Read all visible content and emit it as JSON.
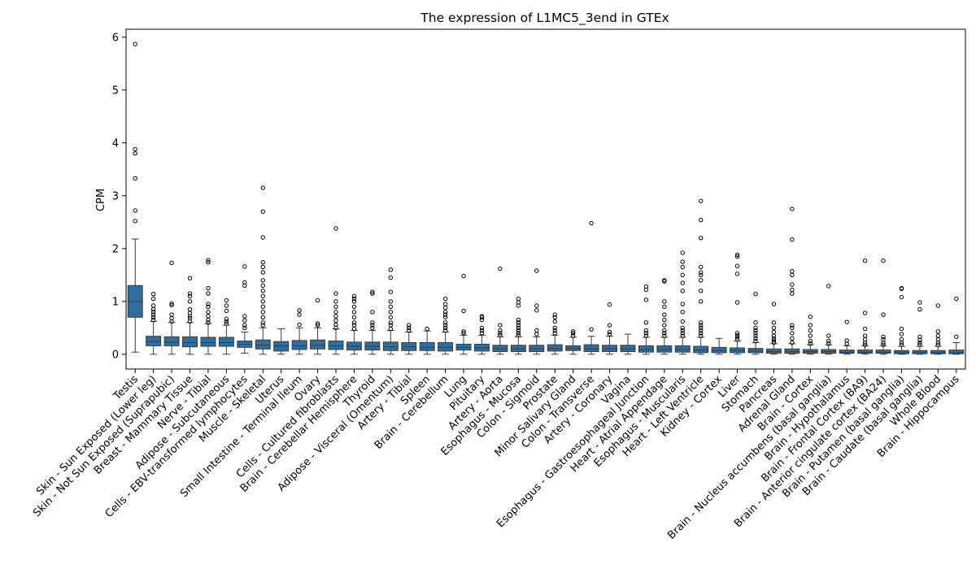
{
  "chart_data": {
    "type": "box",
    "title": "The expression of L1MC5_3end in GTEx",
    "xlabel": "",
    "ylabel": "CPM",
    "ylim": [
      -0.28,
      6.15
    ],
    "yticks": [
      0,
      1,
      2,
      3,
      4,
      5,
      6
    ],
    "grid": false,
    "box_color": "#2f6f9f",
    "categories": [
      {
        "name": "Testis",
        "q1": 0.7,
        "median": 1.0,
        "q3": 1.3,
        "lo": 0.04,
        "hi": 2.18,
        "outliers": [
          2.52,
          2.72,
          3.33,
          3.8,
          3.88,
          5.87
        ]
      },
      {
        "name": "Skin - Sun Exposed (Lower leg)",
        "q1": 0.16,
        "median": 0.24,
        "q3": 0.34,
        "lo": 0.0,
        "hi": 0.62,
        "outliers": [
          0.65,
          0.7,
          0.75,
          0.8,
          0.85,
          0.92,
          1.05,
          1.14
        ]
      },
      {
        "name": "Skin - Not Sun Exposed (Suprapubic)",
        "q1": 0.16,
        "median": 0.23,
        "q3": 0.33,
        "lo": 0.0,
        "hi": 0.6,
        "outliers": [
          0.62,
          0.68,
          0.75,
          0.93,
          0.96,
          1.73
        ]
      },
      {
        "name": "Breast - Mammary Tissue",
        "q1": 0.14,
        "median": 0.22,
        "q3": 0.33,
        "lo": 0.0,
        "hi": 0.6,
        "outliers": [
          0.62,
          0.68,
          0.72,
          0.78,
          0.85,
          1.0,
          1.1,
          1.15,
          1.44
        ]
      },
      {
        "name": "Nerve - Tibial",
        "q1": 0.15,
        "median": 0.22,
        "q3": 0.32,
        "lo": 0.0,
        "hi": 0.58,
        "outliers": [
          0.6,
          0.65,
          0.72,
          0.8,
          0.9,
          0.95,
          1.15,
          1.25,
          1.74,
          1.78
        ]
      },
      {
        "name": "Adipose - Subcutaneous",
        "q1": 0.15,
        "median": 0.22,
        "q3": 0.32,
        "lo": 0.0,
        "hi": 0.55,
        "outliers": [
          0.58,
          0.62,
          0.67,
          0.82,
          0.92,
          1.02
        ]
      },
      {
        "name": "Cells - EBV-transformed lymphocytes",
        "q1": 0.13,
        "median": 0.19,
        "q3": 0.25,
        "lo": 0.02,
        "hi": 0.42,
        "outliers": [
          0.5,
          0.55,
          0.64,
          0.72,
          1.3,
          1.36,
          1.66
        ]
      },
      {
        "name": "Muscle - Skeletal",
        "q1": 0.1,
        "median": 0.17,
        "q3": 0.27,
        "lo": 0.0,
        "hi": 0.5,
        "outliers": [
          0.55,
          0.6,
          0.7,
          0.8,
          0.9,
          1.0,
          1.1,
          1.2,
          1.3,
          1.4,
          1.55,
          1.65,
          1.74,
          2.21,
          2.7,
          3.15
        ]
      },
      {
        "name": "Uterus",
        "q1": 0.06,
        "median": 0.16,
        "q3": 0.24,
        "lo": 0.0,
        "hi": 0.48,
        "outliers": []
      },
      {
        "name": "Small Intestine - Terminal Ileum",
        "q1": 0.09,
        "median": 0.16,
        "q3": 0.26,
        "lo": 0.0,
        "hi": 0.5,
        "outliers": [
          0.56,
          0.75,
          0.83
        ]
      },
      {
        "name": "Ovary",
        "q1": 0.1,
        "median": 0.17,
        "q3": 0.27,
        "lo": 0.0,
        "hi": 0.5,
        "outliers": [
          0.55,
          0.58,
          1.02
        ]
      },
      {
        "name": "Cells - Cultured fibroblasts",
        "q1": 0.09,
        "median": 0.16,
        "q3": 0.25,
        "lo": 0.0,
        "hi": 0.48,
        "outliers": [
          0.5,
          0.56,
          0.64,
          0.72,
          0.8,
          0.9,
          1.0,
          1.15,
          2.38
        ]
      },
      {
        "name": "Brain - Cerebellar Hemisphere",
        "q1": 0.08,
        "median": 0.15,
        "q3": 0.23,
        "lo": 0.0,
        "hi": 0.45,
        "outliers": [
          0.48,
          0.55,
          0.6,
          0.7,
          0.8,
          0.9,
          1.0,
          1.05,
          1.1
        ]
      },
      {
        "name": "Thyroid",
        "q1": 0.08,
        "median": 0.15,
        "q3": 0.23,
        "lo": 0.0,
        "hi": 0.45,
        "outliers": [
          0.5,
          0.55,
          0.6,
          0.8,
          1.15,
          1.18
        ]
      },
      {
        "name": "Adipose - Visceral (Omentum)",
        "q1": 0.07,
        "median": 0.14,
        "q3": 0.23,
        "lo": 0.0,
        "hi": 0.45,
        "outliers": [
          0.48,
          0.55,
          0.6,
          0.7,
          0.8,
          0.9,
          1.0,
          1.18,
          1.45,
          1.6
        ]
      },
      {
        "name": "Artery - Tibial",
        "q1": 0.07,
        "median": 0.14,
        "q3": 0.22,
        "lo": 0.0,
        "hi": 0.42,
        "outliers": [
          0.45,
          0.5,
          0.55
        ]
      },
      {
        "name": "Spleen",
        "q1": 0.07,
        "median": 0.13,
        "q3": 0.22,
        "lo": 0.0,
        "hi": 0.44,
        "outliers": [
          0.48
        ]
      },
      {
        "name": "Brain - Cerebellum",
        "q1": 0.06,
        "median": 0.13,
        "q3": 0.22,
        "lo": 0.0,
        "hi": 0.42,
        "outliers": [
          0.45,
          0.5,
          0.55,
          0.6,
          0.7,
          0.75,
          0.8,
          0.88,
          0.95,
          1.05
        ]
      },
      {
        "name": "Lung",
        "q1": 0.08,
        "median": 0.13,
        "q3": 0.19,
        "lo": 0.0,
        "hi": 0.36,
        "outliers": [
          0.4,
          0.43,
          0.82,
          1.48
        ]
      },
      {
        "name": "Pituitary",
        "q1": 0.06,
        "median": 0.12,
        "q3": 0.19,
        "lo": 0.0,
        "hi": 0.36,
        "outliers": [
          0.4,
          0.45,
          0.5,
          0.65,
          0.7,
          0.72
        ]
      },
      {
        "name": "Artery - Aorta",
        "q1": 0.05,
        "median": 0.1,
        "q3": 0.17,
        "lo": 0.0,
        "hi": 0.33,
        "outliers": [
          0.36,
          0.4,
          0.45,
          0.55,
          1.62
        ]
      },
      {
        "name": "Esophagus - Mucosa",
        "q1": 0.05,
        "median": 0.1,
        "q3": 0.17,
        "lo": 0.0,
        "hi": 0.33,
        "outliers": [
          0.36,
          0.4,
          0.45,
          0.5,
          0.55,
          0.6,
          0.65,
          0.92,
          0.98,
          1.05
        ]
      },
      {
        "name": "Colon - Sigmoid",
        "q1": 0.05,
        "median": 0.1,
        "q3": 0.17,
        "lo": 0.0,
        "hi": 0.33,
        "outliers": [
          0.38,
          0.45,
          0.83,
          0.92,
          1.58
        ]
      },
      {
        "name": "Prostate",
        "q1": 0.06,
        "median": 0.11,
        "q3": 0.18,
        "lo": 0.0,
        "hi": 0.36,
        "outliers": [
          0.4,
          0.45,
          0.5,
          0.62,
          0.7,
          0.75
        ]
      },
      {
        "name": "Minor Salivary Gland",
        "q1": 0.07,
        "median": 0.11,
        "q3": 0.16,
        "lo": 0.0,
        "hi": 0.32,
        "outliers": [
          0.35,
          0.4,
          0.43
        ]
      },
      {
        "name": "Colon - Transverse",
        "q1": 0.05,
        "median": 0.1,
        "q3": 0.18,
        "lo": 0.0,
        "hi": 0.34,
        "outliers": [
          0.47,
          2.48
        ]
      },
      {
        "name": "Artery - Coronary",
        "q1": 0.05,
        "median": 0.1,
        "q3": 0.17,
        "lo": 0.0,
        "hi": 0.34,
        "outliers": [
          0.38,
          0.42,
          0.55,
          0.94
        ]
      },
      {
        "name": "Vagina",
        "q1": 0.05,
        "median": 0.1,
        "q3": 0.17,
        "lo": 0.0,
        "hi": 0.38,
        "outliers": []
      },
      {
        "name": "Esophagus - Gastroesophageal Junction",
        "q1": 0.04,
        "median": 0.09,
        "q3": 0.16,
        "lo": 0.0,
        "hi": 0.32,
        "outliers": [
          0.35,
          0.4,
          0.45,
          0.6,
          1.03,
          1.22,
          1.28
        ]
      },
      {
        "name": "Heart - Atrial Appendage",
        "q1": 0.04,
        "median": 0.09,
        "q3": 0.16,
        "lo": 0.0,
        "hi": 0.32,
        "outliers": [
          0.35,
          0.4,
          0.45,
          0.55,
          0.65,
          0.75,
          0.9,
          1.0,
          1.38,
          1.4
        ]
      },
      {
        "name": "Esophagus - Muscularis",
        "q1": 0.04,
        "median": 0.09,
        "q3": 0.16,
        "lo": 0.0,
        "hi": 0.32,
        "outliers": [
          0.35,
          0.4,
          0.45,
          0.5,
          0.62,
          0.8,
          0.95,
          1.2,
          1.35,
          1.5,
          1.65,
          1.75,
          1.92
        ]
      },
      {
        "name": "Heart - Left Ventricle",
        "q1": 0.03,
        "median": 0.08,
        "q3": 0.15,
        "lo": 0.0,
        "hi": 0.32,
        "outliers": [
          0.35,
          0.4,
          0.45,
          0.5,
          0.55,
          0.6,
          1.0,
          1.2,
          1.4,
          1.5,
          1.55,
          1.65,
          2.2,
          2.54,
          2.9
        ]
      },
      {
        "name": "Kidney - Cortex",
        "q1": 0.03,
        "median": 0.07,
        "q3": 0.13,
        "lo": 0.0,
        "hi": 0.3,
        "outliers": []
      },
      {
        "name": "Liver",
        "q1": 0.03,
        "median": 0.07,
        "q3": 0.12,
        "lo": 0.0,
        "hi": 0.25,
        "outliers": [
          0.28,
          0.32,
          0.36,
          0.4,
          0.98,
          1.52,
          1.67,
          1.85,
          1.88
        ]
      },
      {
        "name": "Stomach",
        "q1": 0.03,
        "median": 0.06,
        "q3": 0.11,
        "lo": 0.0,
        "hi": 0.22,
        "outliers": [
          0.25,
          0.3,
          0.35,
          0.4,
          0.45,
          0.5,
          0.6,
          1.14
        ]
      },
      {
        "name": "Pancreas",
        "q1": 0.02,
        "median": 0.05,
        "q3": 0.1,
        "lo": 0.0,
        "hi": 0.2,
        "outliers": [
          0.22,
          0.26,
          0.3,
          0.35,
          0.42,
          0.5,
          0.6,
          0.95
        ]
      },
      {
        "name": "Adrenal Gland",
        "q1": 0.02,
        "median": 0.05,
        "q3": 0.1,
        "lo": 0.0,
        "hi": 0.2,
        "outliers": [
          0.22,
          0.3,
          0.4,
          0.5,
          0.55,
          1.15,
          1.22,
          1.32,
          1.5,
          1.57,
          2.17,
          2.75
        ]
      },
      {
        "name": "Brain - Cortex",
        "q1": 0.02,
        "median": 0.05,
        "q3": 0.09,
        "lo": 0.0,
        "hi": 0.18,
        "outliers": [
          0.2,
          0.25,
          0.35,
          0.45,
          0.55,
          0.71
        ]
      },
      {
        "name": "Brain - Nucleus accumbens (basal ganglia)",
        "q1": 0.02,
        "median": 0.05,
        "q3": 0.09,
        "lo": 0.0,
        "hi": 0.18,
        "outliers": [
          0.2,
          0.25,
          0.35,
          1.29
        ]
      },
      {
        "name": "Brain - Hypothalamus",
        "q1": 0.02,
        "median": 0.04,
        "q3": 0.08,
        "lo": 0.0,
        "hi": 0.16,
        "outliers": [
          0.2,
          0.26,
          0.61
        ]
      },
      {
        "name": "Brain - Frontal Cortex (BA9)",
        "q1": 0.02,
        "median": 0.04,
        "q3": 0.08,
        "lo": 0.0,
        "hi": 0.16,
        "outliers": [
          0.18,
          0.22,
          0.28,
          0.35,
          0.48,
          0.78,
          1.77
        ]
      },
      {
        "name": "Brain - Anterior cingulate cortex (BA24)",
        "q1": 0.02,
        "median": 0.04,
        "q3": 0.08,
        "lo": 0.0,
        "hi": 0.16,
        "outliers": [
          0.18,
          0.22,
          0.28,
          0.33,
          0.75,
          1.77
        ]
      },
      {
        "name": "Brain - Putamen (basal ganglia)",
        "q1": 0.01,
        "median": 0.04,
        "q3": 0.07,
        "lo": 0.0,
        "hi": 0.15,
        "outliers": [
          0.18,
          0.22,
          0.28,
          0.38,
          0.48,
          1.08,
          1.24,
          1.25
        ]
      },
      {
        "name": "Brain - Caudate (basal ganglia)",
        "q1": 0.01,
        "median": 0.04,
        "q3": 0.07,
        "lo": 0.0,
        "hi": 0.15,
        "outliers": [
          0.18,
          0.22,
          0.27,
          0.33,
          0.85,
          0.98
        ]
      },
      {
        "name": "Whole Blood",
        "q1": 0.01,
        "median": 0.03,
        "q3": 0.07,
        "lo": 0.0,
        "hi": 0.15,
        "outliers": [
          0.18,
          0.22,
          0.28,
          0.35,
          0.43,
          0.92
        ]
      },
      {
        "name": "Brain - Hippocampus",
        "q1": 0.01,
        "median": 0.03,
        "q3": 0.08,
        "lo": 0.0,
        "hi": 0.22,
        "outliers": [
          0.33,
          1.05
        ]
      }
    ]
  }
}
